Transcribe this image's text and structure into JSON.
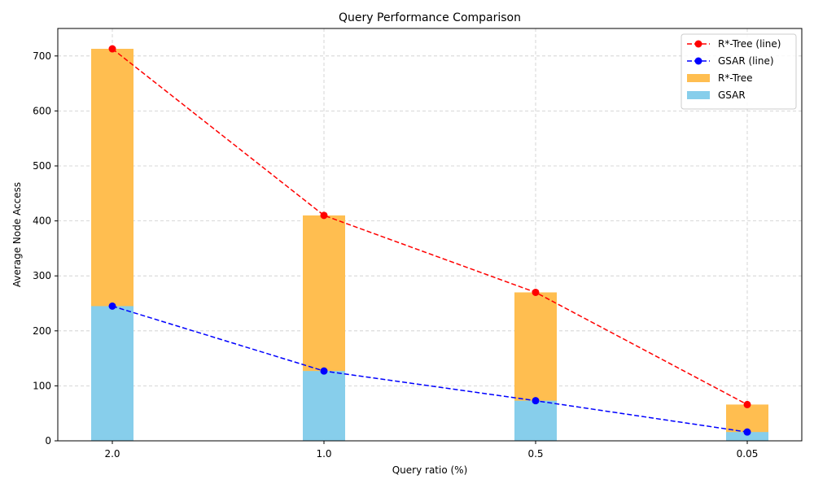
{
  "chart_data": {
    "type": "bar",
    "title": "Query Performance Comparison",
    "xlabel": "Query ratio (%)",
    "ylabel": "Average Node Access",
    "categories": [
      "2.0",
      "1.0",
      "0.5",
      "0.05"
    ],
    "ylim": [
      0,
      750
    ],
    "yticks": [
      0,
      100,
      200,
      300,
      400,
      500,
      600,
      700
    ],
    "grid": true,
    "legend_position": "top-right",
    "series": [
      {
        "name": "R*-Tree",
        "kind": "bar",
        "color": "#FFBE50",
        "values": [
          713,
          410,
          270,
          66
        ]
      },
      {
        "name": "GSAR",
        "kind": "bar",
        "color": "#87CEEB",
        "values": [
          245,
          127,
          73,
          16
        ]
      },
      {
        "name": "R*-Tree (line)",
        "kind": "line",
        "color": "#FF0000",
        "values": [
          713,
          410,
          270,
          66
        ]
      },
      {
        "name": "GSAR (line)",
        "kind": "line",
        "color": "#0000FF",
        "values": [
          245,
          127,
          73,
          16
        ]
      }
    ],
    "legend_order": [
      "R*-Tree (line)",
      "GSAR (line)",
      "R*-Tree",
      "GSAR"
    ]
  }
}
